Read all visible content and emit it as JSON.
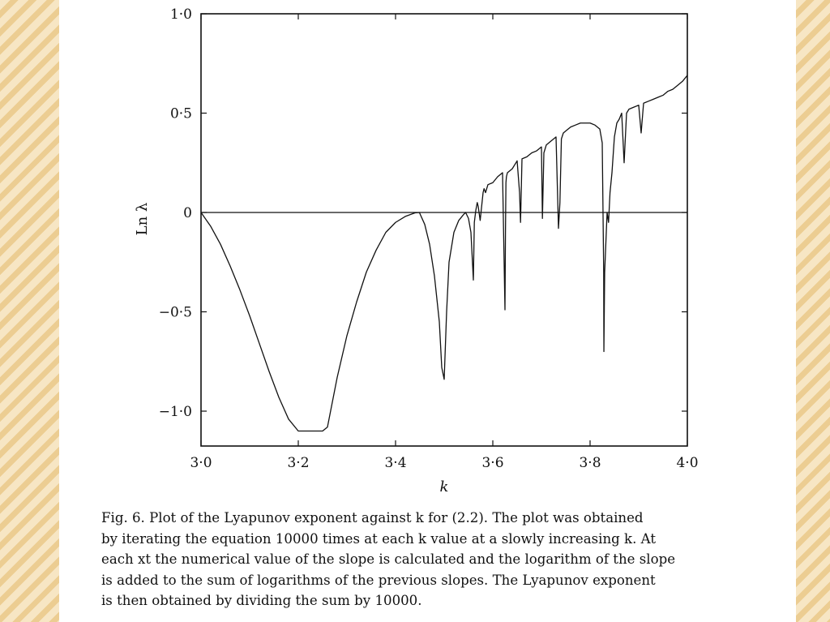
{
  "background": {
    "stripe_light": "#f7e6c4",
    "stripe_dark": "#eccd92",
    "slide_color": "#ffffff"
  },
  "chart_data": {
    "type": "line",
    "title": "",
    "xlabel": "k",
    "ylabel": "Ln λ",
    "xlim": [
      3.0,
      4.0
    ],
    "ylim": [
      -1.08,
      1.0
    ],
    "x_ticks": [
      {
        "value": 3.0,
        "label": "3·0"
      },
      {
        "value": 3.2,
        "label": "3·2"
      },
      {
        "value": 3.4,
        "label": "3·4"
      },
      {
        "value": 3.6,
        "label": "3·6"
      },
      {
        "value": 3.8,
        "label": "3·8"
      },
      {
        "value": 4.0,
        "label": "4·0"
      }
    ],
    "y_ticks": [
      {
        "value": 1.0,
        "label": "1·0"
      },
      {
        "value": 0.5,
        "label": "0·5"
      },
      {
        "value": 0.0,
        "label": "0"
      },
      {
        "value": -0.5,
        "label": "−0·5"
      },
      {
        "value": -1.0,
        "label": "−1·0"
      }
    ],
    "grid": false,
    "reference_line_y": 0,
    "series": [
      {
        "x": [
          3.0,
          3.02,
          3.04,
          3.06,
          3.08,
          3.1,
          3.12,
          3.14,
          3.16,
          3.18,
          3.2,
          3.21,
          3.215,
          3.22,
          3.235,
          3.25,
          3.26,
          3.28,
          3.3,
          3.32,
          3.34,
          3.36,
          3.38,
          3.4,
          3.42,
          3.44,
          3.449,
          3.46,
          3.47,
          3.48,
          3.49,
          3.495,
          3.5,
          3.505,
          3.51,
          3.52,
          3.53,
          3.54,
          3.5441,
          3.55,
          3.555,
          3.56,
          3.562,
          3.565,
          3.568,
          3.57,
          3.574,
          3.58,
          3.582,
          3.585,
          3.59,
          3.6,
          3.61,
          3.62,
          3.625,
          3.626,
          3.627,
          3.628,
          3.63,
          3.64,
          3.65,
          3.655,
          3.657,
          3.66,
          3.67,
          3.68,
          3.69,
          3.7,
          3.702,
          3.705,
          3.71,
          3.72,
          3.73,
          3.735,
          3.738,
          3.741,
          3.745,
          3.75,
          3.76,
          3.77,
          3.78,
          3.79,
          3.8,
          3.81,
          3.82,
          3.825,
          3.828,
          3.8284,
          3.83,
          3.835,
          3.838,
          3.841,
          3.845,
          3.85,
          3.855,
          3.86,
          3.865,
          3.87,
          3.875,
          3.88,
          3.89,
          3.9,
          3.905,
          3.91,
          3.92,
          3.93,
          3.94,
          3.95,
          3.96,
          3.97,
          3.98,
          3.99,
          4.0
        ],
        "y": [
          0.0,
          -0.07,
          -0.16,
          -0.27,
          -0.39,
          -0.52,
          -0.66,
          -0.8,
          -0.93,
          -1.04,
          -1.1,
          -1.1,
          -1.1,
          -1.1,
          -1.1,
          -1.1,
          -1.08,
          -0.83,
          -0.62,
          -0.45,
          -0.3,
          -0.19,
          -0.1,
          -0.05,
          -0.02,
          -0.002,
          0.0,
          -0.06,
          -0.16,
          -0.32,
          -0.55,
          -0.78,
          -0.84,
          -0.5,
          -0.25,
          -0.1,
          -0.04,
          -0.01,
          0.0,
          -0.03,
          -0.1,
          -0.34,
          -0.05,
          0.01,
          0.05,
          0.03,
          -0.04,
          0.1,
          0.12,
          0.1,
          0.14,
          0.15,
          0.18,
          0.2,
          -0.49,
          -0.1,
          0.15,
          0.18,
          0.2,
          0.22,
          0.26,
          0.1,
          -0.05,
          0.27,
          0.28,
          0.3,
          0.31,
          0.33,
          -0.03,
          0.3,
          0.34,
          0.36,
          0.38,
          -0.08,
          0.05,
          0.37,
          0.4,
          0.41,
          0.43,
          0.44,
          0.45,
          0.45,
          0.45,
          0.44,
          0.42,
          0.35,
          -0.3,
          -0.7,
          -0.3,
          0.0,
          -0.05,
          0.1,
          0.2,
          0.38,
          0.45,
          0.47,
          0.5,
          0.25,
          0.5,
          0.52,
          0.53,
          0.54,
          0.4,
          0.55,
          0.56,
          0.57,
          0.58,
          0.59,
          0.61,
          0.62,
          0.64,
          0.66,
          0.69
        ]
      }
    ]
  },
  "caption": {
    "lines": [
      "Fig. 6. Plot of the Lyapunov exponent against k for (2.2). The plot was obtained",
      "by iterating the equation 10000 times at each k value at a slowly increasing k. At",
      "each xt the numerical value of the slope is calculated and the logarithm of the slope",
      "is added to the sum of logarithms of the previous slopes. The Lyapunov exponent",
      "is then obtained by dividing the sum by 10000."
    ]
  }
}
